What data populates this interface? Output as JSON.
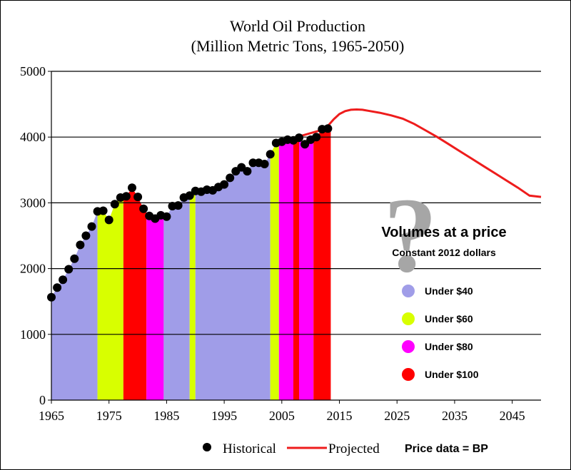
{
  "chart_data": {
    "type": "area",
    "title": "World Oil Production",
    "subtitle": "(Million  Metric Tons, 1965-2050)",
    "xlim": [
      1965,
      2050
    ],
    "ylim": [
      0,
      5000
    ],
    "x_ticks": [
      1965,
      1975,
      1985,
      1995,
      2005,
      2015,
      2025,
      2035,
      2045
    ],
    "y_ticks": [
      0,
      1000,
      2000,
      3000,
      4000,
      5000
    ],
    "gridlines_y": true,
    "historical": {
      "name": "Historical",
      "years": [
        1965,
        1966,
        1967,
        1968,
        1969,
        1970,
        1971,
        1972,
        1973,
        1974,
        1975,
        1976,
        1977,
        1978,
        1979,
        1980,
        1981,
        1982,
        1983,
        1984,
        1985,
        1986,
        1987,
        1988,
        1989,
        1990,
        1991,
        1992,
        1993,
        1994,
        1995,
        1996,
        1997,
        1998,
        1999,
        2000,
        2001,
        2002,
        2003,
        2004,
        2005,
        2006,
        2007,
        2008,
        2009,
        2010,
        2011,
        2012,
        2013
      ],
      "values": [
        1565,
        1710,
        1830,
        1990,
        2150,
        2360,
        2500,
        2640,
        2870,
        2880,
        2740,
        2980,
        3080,
        3100,
        3230,
        3090,
        2910,
        2800,
        2760,
        2810,
        2790,
        2950,
        2960,
        3080,
        3110,
        3180,
        3170,
        3200,
        3190,
        3240,
        3280,
        3380,
        3480,
        3540,
        3480,
        3610,
        3610,
        3590,
        3740,
        3910,
        3930,
        3960,
        3950,
        3990,
        3890,
        3960,
        4000,
        4120,
        4130
      ]
    },
    "projected": {
      "name": "Projected",
      "years": [
        2004,
        2006,
        2008,
        2010,
        2012,
        2013,
        2014,
        2015,
        2016,
        2017,
        2018,
        2019,
        2020,
        2022,
        2024,
        2026,
        2028,
        2030,
        2032,
        2034,
        2036,
        2038,
        2040,
        2042,
        2044,
        2046,
        2048,
        2050
      ],
      "values": [
        3910,
        3960,
        4010,
        4060,
        4110,
        4170,
        4270,
        4350,
        4395,
        4415,
        4420,
        4415,
        4400,
        4370,
        4330,
        4280,
        4200,
        4100,
        4000,
        3890,
        3780,
        3670,
        3560,
        3450,
        3340,
        3230,
        3110,
        3090
      ]
    },
    "price_bands": [
      {
        "from": 1965,
        "to": 1973,
        "category": "Under $40"
      },
      {
        "from": 1973,
        "to": 1977.5,
        "category": "Under $60"
      },
      {
        "from": 1977.5,
        "to": 1981.5,
        "category": "Under $100"
      },
      {
        "from": 1981.5,
        "to": 1984.5,
        "category": "Under $80"
      },
      {
        "from": 1984.5,
        "to": 1989,
        "category": "Under $40"
      },
      {
        "from": 1989,
        "to": 1990,
        "category": "Under $60"
      },
      {
        "from": 1990,
        "to": 2003,
        "category": "Under $40"
      },
      {
        "from": 2003,
        "to": 2004.5,
        "category": "Under $60"
      },
      {
        "from": 2004.5,
        "to": 2007,
        "category": "Under $80"
      },
      {
        "from": 2007,
        "to": 2008,
        "category": "Under $100"
      },
      {
        "from": 2008,
        "to": 2010.5,
        "category": "Under $80"
      },
      {
        "from": 2010.5,
        "to": 2013.5,
        "category": "Under $100"
      }
    ],
    "legend_bottom": [
      "Historical",
      "Projected",
      "Price data = BP"
    ],
    "annotation": {
      "question_mark": "?",
      "heading": "Volumes at a price",
      "subheading": "Constant 2012 dollars",
      "categories": [
        {
          "label": "Under $40",
          "color": "#a09de8"
        },
        {
          "label": "Under $60",
          "color": "#d8ff00"
        },
        {
          "label": "Under $80",
          "color": "#ff00ff"
        },
        {
          "label": "Under $100",
          "color": "#ff0000"
        }
      ]
    },
    "colors": {
      "historical_marker": "#000000",
      "projected_line": "#ee1c1c",
      "question_mark": "#a6a6a6"
    }
  }
}
